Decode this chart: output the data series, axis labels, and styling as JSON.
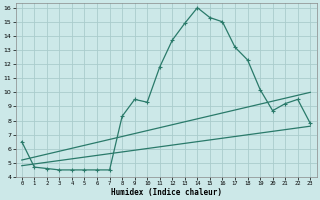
{
  "xlabel": "Humidex (Indice chaleur)",
  "bg_color": "#cce8e8",
  "grid_color": "#aacccc",
  "line_color": "#2a7a6a",
  "xlim": [
    -0.5,
    23.5
  ],
  "ylim": [
    4,
    16.3
  ],
  "xticks": [
    0,
    1,
    2,
    3,
    4,
    5,
    6,
    7,
    8,
    9,
    10,
    11,
    12,
    13,
    14,
    15,
    16,
    17,
    18,
    19,
    20,
    21,
    22,
    23
  ],
  "yticks": [
    4,
    5,
    6,
    7,
    8,
    9,
    10,
    11,
    12,
    13,
    14,
    15,
    16
  ],
  "line1_x": [
    0,
    1,
    2,
    3,
    4,
    5,
    6,
    7,
    8,
    9,
    10,
    11,
    12,
    13,
    14,
    15,
    16,
    17,
    18,
    19,
    20,
    21,
    22,
    23
  ],
  "line1_y": [
    6.5,
    4.7,
    4.6,
    4.5,
    4.5,
    4.5,
    4.5,
    4.5,
    8.3,
    9.5,
    9.3,
    11.8,
    13.7,
    14.9,
    16.0,
    15.3,
    15.0,
    13.2,
    12.3,
    10.2,
    8.7,
    9.2,
    9.5,
    7.8
  ],
  "line2_x": [
    0,
    23
  ],
  "line2_y": [
    5.2,
    10.0
  ],
  "line3_x": [
    0,
    23
  ],
  "line3_y": [
    4.8,
    7.6
  ]
}
